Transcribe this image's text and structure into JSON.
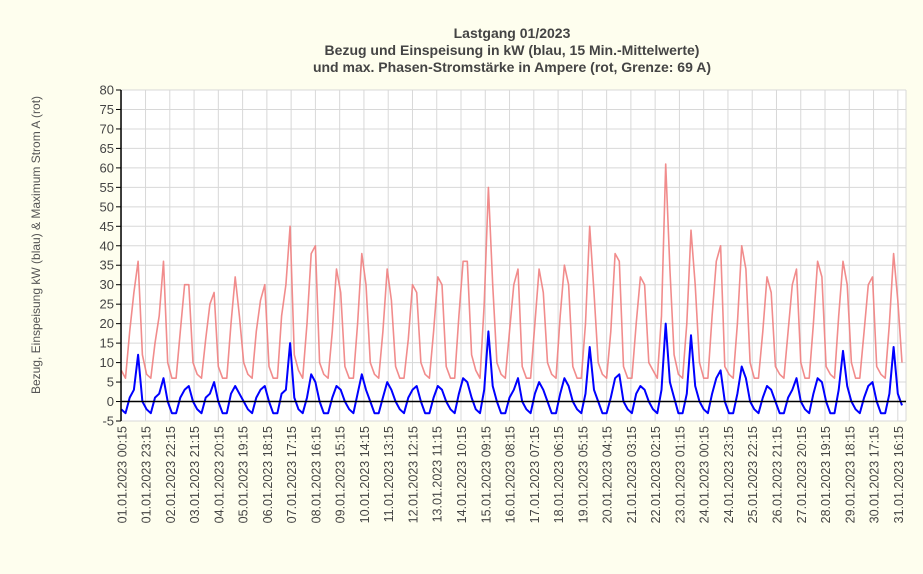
{
  "chart_data": {
    "type": "line",
    "title": [
      "Lastgang 01/2023",
      "Bezug und Einspeisung in kW (blau, 15 Min.-Mittelwerte)",
      "und max. Phasen-Stromstärke in Ampere (rot, Grenze: 69 A)"
    ],
    "ylabel": "Bezug, Einspeisung kW (blau) & Maximum Strom A (rot)",
    "xlabel": "",
    "ylim": [
      -5,
      80
    ],
    "yticks": [
      -5,
      0,
      5,
      10,
      15,
      20,
      25,
      30,
      35,
      40,
      45,
      50,
      55,
      60,
      65,
      70,
      75,
      80
    ],
    "grid": true,
    "x_unit": "hours since 01.01.2023 00:00",
    "x_range_hours": [
      0,
      744
    ],
    "sample_interval_hours": 4,
    "xtick_hours": [
      0.25,
      23.25,
      46.25,
      69.25,
      92.25,
      115.25,
      138.25,
      161.25,
      184.25,
      207.25,
      230.25,
      253.25,
      276.25,
      299.25,
      322.25,
      345.25,
      368.25,
      391.25,
      414.25,
      437.25,
      460.25,
      483.25,
      506.25,
      529.25,
      552.25,
      575.25,
      598.25,
      621.25,
      644.25,
      667.25,
      690.25,
      713.25,
      736.25
    ],
    "xtick_labels": [
      "01.01.2023 00:15",
      "01.01.2023 23:15",
      "02.01.2023 22:15",
      "03.01.2023 21:15",
      "04.01.2023 20:15",
      "05.01.2023 19:15",
      "06.01.2023 18:15",
      "07.01.2023 17:15",
      "08.01.2023 16:15",
      "09.01.2023 15:15",
      "10.01.2023 14:15",
      "11.01.2023 13:15",
      "12.01.2023 12:15",
      "13.01.2023 11:15",
      "14.01.2023 10:15",
      "15.01.2023 09:15",
      "16.01.2023 08:15",
      "17.01.2023 07:15",
      "18.01.2023 06:15",
      "19.01.2023 05:15",
      "20.01.2023 04:15",
      "21.01.2023 03:15",
      "22.01.2023 02:15",
      "23.01.2023 01:15",
      "24.01.2023 00:15",
      "24.01.2023 23:15",
      "25.01.2023 22:15",
      "26.01.2023 21:15",
      "27.01.2023 20:15",
      "28.01.2023 19:15",
      "29.01.2023 18:15",
      "30.01.2023 17:15",
      "31.01.2023 16:15"
    ],
    "series": [
      {
        "name": "max. Phasen-Stromstärke (A)",
        "color": "#f08080",
        "values": [
          8,
          6,
          18,
          28,
          36,
          12,
          7,
          6,
          15,
          22,
          36,
          10,
          6,
          6,
          18,
          30,
          30,
          10,
          7,
          6,
          16,
          25,
          28,
          9,
          6,
          6,
          20,
          32,
          22,
          10,
          7,
          6,
          18,
          26,
          30,
          9,
          6,
          6,
          22,
          30,
          45,
          12,
          8,
          6,
          20,
          38,
          40,
          10,
          7,
          6,
          18,
          34,
          28,
          9,
          6,
          6,
          20,
          38,
          30,
          10,
          7,
          6,
          18,
          34,
          26,
          9,
          6,
          6,
          16,
          30,
          28,
          10,
          7,
          6,
          18,
          32,
          30,
          9,
          6,
          6,
          22,
          36,
          36,
          12,
          8,
          6,
          25,
          55,
          30,
          10,
          7,
          6,
          18,
          30,
          34,
          9,
          6,
          6,
          20,
          34,
          28,
          10,
          7,
          6,
          22,
          35,
          30,
          9,
          6,
          6,
          20,
          45,
          28,
          10,
          7,
          6,
          18,
          38,
          36,
          9,
          6,
          6,
          20,
          32,
          30,
          10,
          8,
          6,
          22,
          61,
          34,
          12,
          7,
          6,
          20,
          44,
          30,
          10,
          6,
          6,
          22,
          36,
          40,
          9,
          7,
          6,
          20,
          40,
          34,
          10,
          6,
          6,
          18,
          32,
          28,
          9,
          7,
          6,
          18,
          30,
          34,
          10,
          6,
          6,
          20,
          36,
          32,
          9,
          7,
          6,
          22,
          36,
          30,
          10,
          6,
          6,
          18,
          30,
          32,
          9,
          7,
          6,
          20,
          38,
          26,
          10
        ]
      },
      {
        "name": "Bezug/Einspeisung (kW)",
        "color": "#0000ff",
        "values": [
          -2,
          -3,
          1,
          3,
          12,
          0,
          -2,
          -3,
          1,
          2,
          6,
          0,
          -3,
          -3,
          1,
          3,
          4,
          0,
          -2,
          -3,
          1,
          2,
          5,
          0,
          -3,
          -3,
          2,
          4,
          2,
          0,
          -2,
          -3,
          1,
          3,
          4,
          0,
          -3,
          -3,
          2,
          3,
          15,
          1,
          -2,
          -3,
          1,
          7,
          5,
          0,
          -3,
          -3,
          1,
          4,
          3,
          0,
          -2,
          -3,
          2,
          7,
          3,
          0,
          -3,
          -3,
          1,
          5,
          3,
          0,
          -2,
          -3,
          1,
          3,
          4,
          0,
          -3,
          -3,
          1,
          4,
          3,
          0,
          -2,
          -3,
          2,
          6,
          5,
          1,
          -2,
          -3,
          3,
          18,
          4,
          0,
          -3,
          -3,
          1,
          3,
          6,
          0,
          -2,
          -3,
          2,
          5,
          3,
          0,
          -3,
          -3,
          2,
          6,
          4,
          0,
          -2,
          -3,
          2,
          14,
          3,
          0,
          -3,
          -3,
          1,
          6,
          7,
          0,
          -2,
          -3,
          2,
          4,
          3,
          0,
          -2,
          -3,
          3,
          20,
          5,
          1,
          -3,
          -3,
          2,
          17,
          4,
          0,
          -2,
          -3,
          2,
          6,
          8,
          0,
          -3,
          -3,
          2,
          9,
          6,
          0,
          -2,
          -3,
          1,
          4,
          3,
          0,
          -3,
          -3,
          1,
          3,
          6,
          0,
          -2,
          -3,
          2,
          6,
          5,
          0,
          -3,
          -3,
          3,
          13,
          4,
          0,
          -2,
          -3,
          1,
          4,
          5,
          0,
          -3,
          -3,
          2,
          14,
          2,
          -1
        ]
      }
    ]
  }
}
